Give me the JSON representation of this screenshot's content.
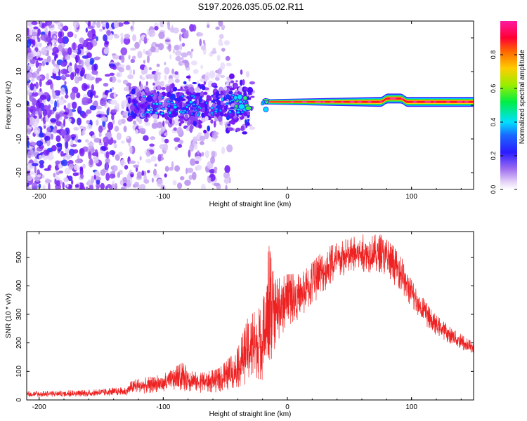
{
  "title": "S197.2026.035.05.02.R11",
  "chart_data": [
    {
      "type": "heatmap",
      "title": "S197.2026.035.05.02.R11",
      "xlabel": "Height of straight line (km)",
      "ylabel": "Frequency (Hz)",
      "xlim": [
        -210,
        150
      ],
      "ylim": [
        -25,
        25
      ],
      "xticks": [
        -200,
        -100,
        0,
        100
      ],
      "yticks": [
        -20,
        -10,
        0,
        10,
        20
      ],
      "colorbar": {
        "label": "Normalized spectral amplitude",
        "range": [
          0,
          1
        ],
        "ticks": [
          0.0,
          0.2,
          0.4,
          0.6,
          0.8
        ]
      },
      "signal": {
        "description_free": true,
        "strong_band_x": [
          -20,
          150
        ],
        "band_center_hz": [
          1,
          1
        ],
        "band_center_hz_step": {
          "x_from": 78,
          "x_to": 94,
          "hz": 2
        },
        "noise_region_x": [
          -210,
          -30
        ],
        "noise_cluster_x": [
          -125,
          -30
        ]
      }
    },
    {
      "type": "line",
      "xlabel": "Height of straight line (km)",
      "ylabel": "SNR (10 * v/v)",
      "xlim": [
        -210,
        150
      ],
      "ylim": [
        0,
        590
      ],
      "xticks": [
        -200,
        -100,
        0,
        100
      ],
      "yticks": [
        0,
        100,
        200,
        300,
        400,
        500
      ],
      "series": [
        {
          "name": "SNR",
          "color": "#ee2222",
          "envelope": [
            {
              "x": -210,
              "lo": 10,
              "hi": 30
            },
            {
              "x": -160,
              "lo": 12,
              "hi": 35
            },
            {
              "x": -130,
              "lo": 15,
              "hi": 45
            },
            {
              "x": -125,
              "lo": 20,
              "hi": 70
            },
            {
              "x": -100,
              "lo": 25,
              "hi": 90
            },
            {
              "x": -85,
              "lo": 30,
              "hi": 130
            },
            {
              "x": -70,
              "lo": 25,
              "hi": 95
            },
            {
              "x": -55,
              "lo": 25,
              "hi": 110
            },
            {
              "x": -40,
              "lo": 40,
              "hi": 180
            },
            {
              "x": -32,
              "lo": 60,
              "hi": 290
            },
            {
              "x": -20,
              "lo": 70,
              "hi": 330
            },
            {
              "x": -15,
              "lo": 60,
              "hi": 545
            },
            {
              "x": -10,
              "lo": 180,
              "hi": 420
            },
            {
              "x": 0,
              "lo": 260,
              "hi": 440
            },
            {
              "x": 10,
              "lo": 280,
              "hi": 440
            },
            {
              "x": 20,
              "lo": 330,
              "hi": 480
            },
            {
              "x": 30,
              "lo": 380,
              "hi": 530
            },
            {
              "x": 45,
              "lo": 430,
              "hi": 560
            },
            {
              "x": 60,
              "lo": 450,
              "hi": 580
            },
            {
              "x": 75,
              "lo": 440,
              "hi": 580
            },
            {
              "x": 90,
              "lo": 390,
              "hi": 520
            },
            {
              "x": 100,
              "lo": 320,
              "hi": 420
            },
            {
              "x": 115,
              "lo": 240,
              "hi": 320
            },
            {
              "x": 130,
              "lo": 200,
              "hi": 260
            },
            {
              "x": 150,
              "lo": 150,
              "hi": 200
            }
          ]
        }
      ]
    }
  ]
}
